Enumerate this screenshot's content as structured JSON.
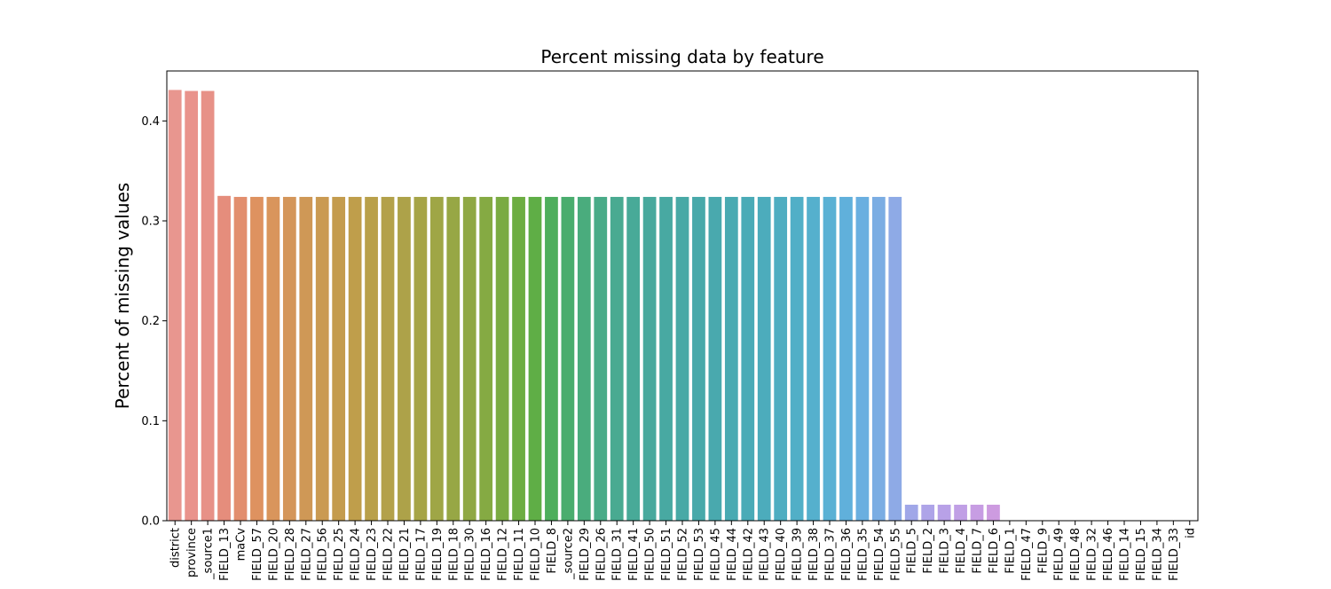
{
  "chart_data": {
    "type": "bar",
    "title": "Percent missing data by feature",
    "xlabel": "",
    "ylabel": "Percent of missing values",
    "ylim": [
      0,
      0.45
    ],
    "yticks": [
      0.0,
      0.1,
      0.2,
      0.3,
      0.4
    ],
    "grid": false,
    "legend": "none",
    "categories": [
      "district",
      "province",
      "_source1",
      "FIELD_13",
      "maCv",
      "FIELD_57",
      "FIELD_20",
      "FIELD_28",
      "FIELD_27",
      "FIELD_56",
      "FIELD_25",
      "FIELD_24",
      "FIELD_23",
      "FIELD_22",
      "FIELD_21",
      "FIELD_17",
      "FIELD_19",
      "FIELD_18",
      "FIELD_30",
      "FIELD_16",
      "FIELD_12",
      "FIELD_11",
      "FIELD_10",
      "FIELD_8",
      "_source2",
      "FIELD_29",
      "FIELD_26",
      "FIELD_31",
      "FIELD_41",
      "FIELD_50",
      "FIELD_51",
      "FIELD_52",
      "FIELD_53",
      "FIELD_45",
      "FIELD_44",
      "FIELD_42",
      "FIELD_43",
      "FIELD_40",
      "FIELD_39",
      "FIELD_38",
      "FIELD_37",
      "FIELD_36",
      "FIELD_35",
      "FIELD_54",
      "FIELD_55",
      "FIELD_5",
      "FIELD_2",
      "FIELD_3",
      "FIELD_4",
      "FIELD_7",
      "FIELD_6",
      "FIELD_1",
      "FIELD_47",
      "FIELD_9",
      "FIELD_49",
      "FIELD_48",
      "FIELD_32",
      "FIELD_46",
      "FIELD_14",
      "FIELD_15",
      "FIELD_34",
      "FIELD_33",
      "id"
    ],
    "values": [
      0.431,
      0.43,
      0.43,
      0.325,
      0.324,
      0.324,
      0.324,
      0.324,
      0.324,
      0.324,
      0.324,
      0.324,
      0.324,
      0.324,
      0.324,
      0.324,
      0.324,
      0.324,
      0.324,
      0.324,
      0.324,
      0.324,
      0.324,
      0.324,
      0.324,
      0.324,
      0.324,
      0.324,
      0.324,
      0.324,
      0.324,
      0.324,
      0.324,
      0.324,
      0.324,
      0.324,
      0.324,
      0.324,
      0.324,
      0.324,
      0.324,
      0.324,
      0.324,
      0.324,
      0.324,
      0.016,
      0.016,
      0.016,
      0.016,
      0.016,
      0.016,
      0.0,
      0.0,
      0.0,
      0.0,
      0.0,
      0.0,
      0.0,
      0.0,
      0.0,
      0.0,
      0.0,
      0.0
    ],
    "colors": [
      "#e8968f",
      "#e9938c",
      "#e79187",
      "#e58d7c",
      "#e28e6e",
      "#de9260",
      "#d9955c",
      "#d4965a",
      "#cf9856",
      "#ca9a52",
      "#c49c4e",
      "#bf9e4b",
      "#b9a04a",
      "#b3a14a",
      "#ada249",
      "#a6a447",
      "#9fa646",
      "#97a745",
      "#8fa844",
      "#85aa43",
      "#7aab42",
      "#6dad42",
      "#5fae46",
      "#4eae5c",
      "#4aad6e",
      "#4aac7d",
      "#49ab88",
      "#49aa91",
      "#48aa98",
      "#48a99d",
      "#48a9a2",
      "#48a9a6",
      "#48a9aa",
      "#49a9ae",
      "#49aab2",
      "#4aabb7",
      "#4cacbc",
      "#4eadc1",
      "#51afc7",
      "#55b0cd",
      "#5ab1d4",
      "#60b0db",
      "#6aafe0",
      "#7bade3",
      "#8eaae6",
      "#a0a7e8",
      "#aea4e8",
      "#b8a1e7",
      "#c09fe5",
      "#c79de3",
      "#cd9be0",
      "#d19ade",
      "#d699db",
      "#da98d8",
      "#dd97d4",
      "#e096d0",
      "#e295cc",
      "#e494c7",
      "#e594c2",
      "#e693bd",
      "#e793b7",
      "#e893b1",
      "#e893ab"
    ]
  }
}
